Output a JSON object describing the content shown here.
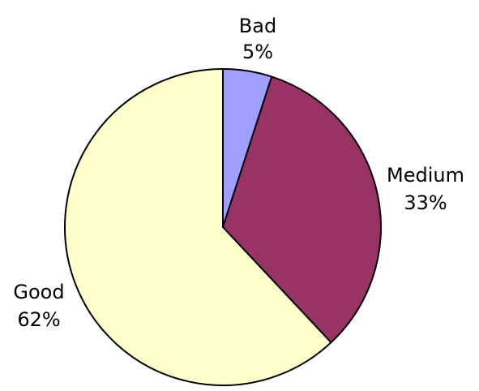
{
  "chart_data": {
    "type": "pie",
    "slices": [
      {
        "label": "Bad",
        "value": 5,
        "value_label": "5%",
        "color": "#9F9FFF"
      },
      {
        "label": "Medium",
        "value": 33,
        "value_label": "33%",
        "color": "#993366"
      },
      {
        "label": "Good",
        "value": 62,
        "value_label": "62%",
        "color": "#FFFFCC"
      }
    ],
    "start_angle_deg": 0,
    "direction": "clockwise",
    "outline_color": "#000000"
  }
}
